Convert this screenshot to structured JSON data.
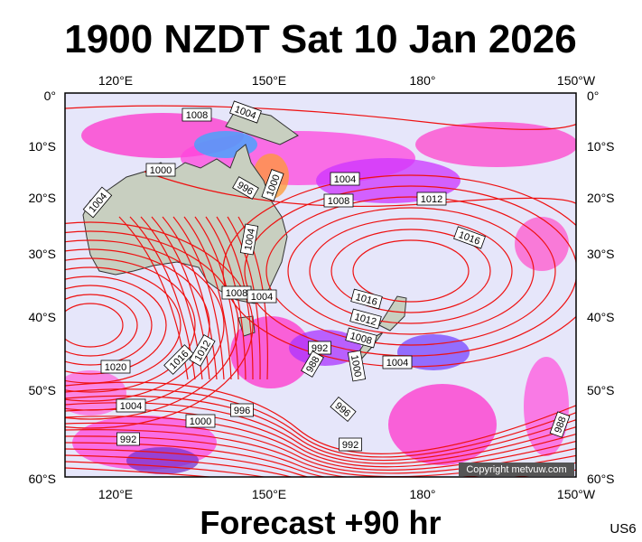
{
  "header": {
    "title": "1900 NZDT Sat 10 Jan 2026"
  },
  "axes": {
    "top": [
      "120°E",
      "150°E",
      "180°",
      "150°W"
    ],
    "bottom": [
      "120°E",
      "150°E",
      "180°",
      "150°W"
    ],
    "left": [
      "0°",
      "10°S",
      "20°S",
      "30°S",
      "40°S",
      "50°S",
      "60°S"
    ],
    "right": [
      "0°",
      "10°S",
      "20°S",
      "30°S",
      "40°S",
      "50°S",
      "60°S"
    ]
  },
  "isobar_labels": [
    "1008",
    "1004",
    "1000",
    "996",
    "1000",
    "1004",
    "1008",
    "1012",
    "1004",
    "1004",
    "1016",
    "1008",
    "1004",
    "1016",
    "1012",
    "1008",
    "992",
    "988",
    "1000",
    "1004",
    "1020",
    "1016",
    "1012",
    "1004",
    "996",
    "1000",
    "996",
    "992",
    "992",
    "988"
  ],
  "copyright": "Copyright metvuw.com",
  "footer": {
    "forecast": "Forecast +90 hr",
    "code": "US6"
  }
}
